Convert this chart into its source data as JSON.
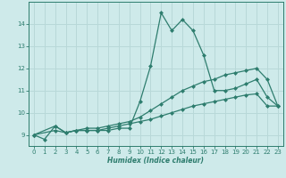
{
  "xlabel": "Humidex (Indice chaleur)",
  "background_color": "#ceeaea",
  "grid_color": "#b8d8d8",
  "line_color": "#2e7d6e",
  "xlim": [
    -0.5,
    23.5
  ],
  "ylim": [
    8.5,
    15.0
  ],
  "xticks": [
    0,
    1,
    2,
    3,
    4,
    5,
    6,
    7,
    8,
    9,
    10,
    11,
    12,
    13,
    14,
    15,
    16,
    17,
    18,
    19,
    20,
    21,
    22,
    23
  ],
  "yticks": [
    9,
    10,
    11,
    12,
    13,
    14
  ],
  "series1_x": [
    0,
    1,
    2,
    3,
    4,
    5,
    6,
    7,
    8,
    9,
    10,
    11,
    12,
    13,
    14,
    15,
    16,
    17,
    18,
    19,
    20,
    21,
    22,
    23
  ],
  "series1_y": [
    9.0,
    8.8,
    9.4,
    9.1,
    9.2,
    9.2,
    9.2,
    9.2,
    9.3,
    9.3,
    10.5,
    12.1,
    14.5,
    13.7,
    14.2,
    13.7,
    12.6,
    11.0,
    11.0,
    11.1,
    11.3,
    11.5,
    10.7,
    10.3
  ],
  "series2_x": [
    0,
    2,
    3,
    4,
    5,
    6,
    7,
    8,
    9,
    10,
    11,
    12,
    13,
    14,
    15,
    16,
    17,
    18,
    19,
    20,
    21,
    22,
    23
  ],
  "series2_y": [
    9.0,
    9.4,
    9.1,
    9.2,
    9.3,
    9.3,
    9.4,
    9.5,
    9.6,
    9.8,
    10.1,
    10.4,
    10.7,
    11.0,
    11.2,
    11.4,
    11.5,
    11.7,
    11.8,
    11.9,
    12.0,
    11.5,
    10.3
  ],
  "series3_x": [
    0,
    2,
    3,
    4,
    5,
    6,
    7,
    8,
    9,
    10,
    11,
    12,
    13,
    14,
    15,
    16,
    17,
    18,
    19,
    20,
    21,
    22,
    23
  ],
  "series3_y": [
    9.0,
    9.2,
    9.1,
    9.2,
    9.2,
    9.2,
    9.3,
    9.4,
    9.5,
    9.6,
    9.7,
    9.85,
    10.0,
    10.15,
    10.3,
    10.4,
    10.5,
    10.6,
    10.7,
    10.8,
    10.85,
    10.3,
    10.3
  ]
}
